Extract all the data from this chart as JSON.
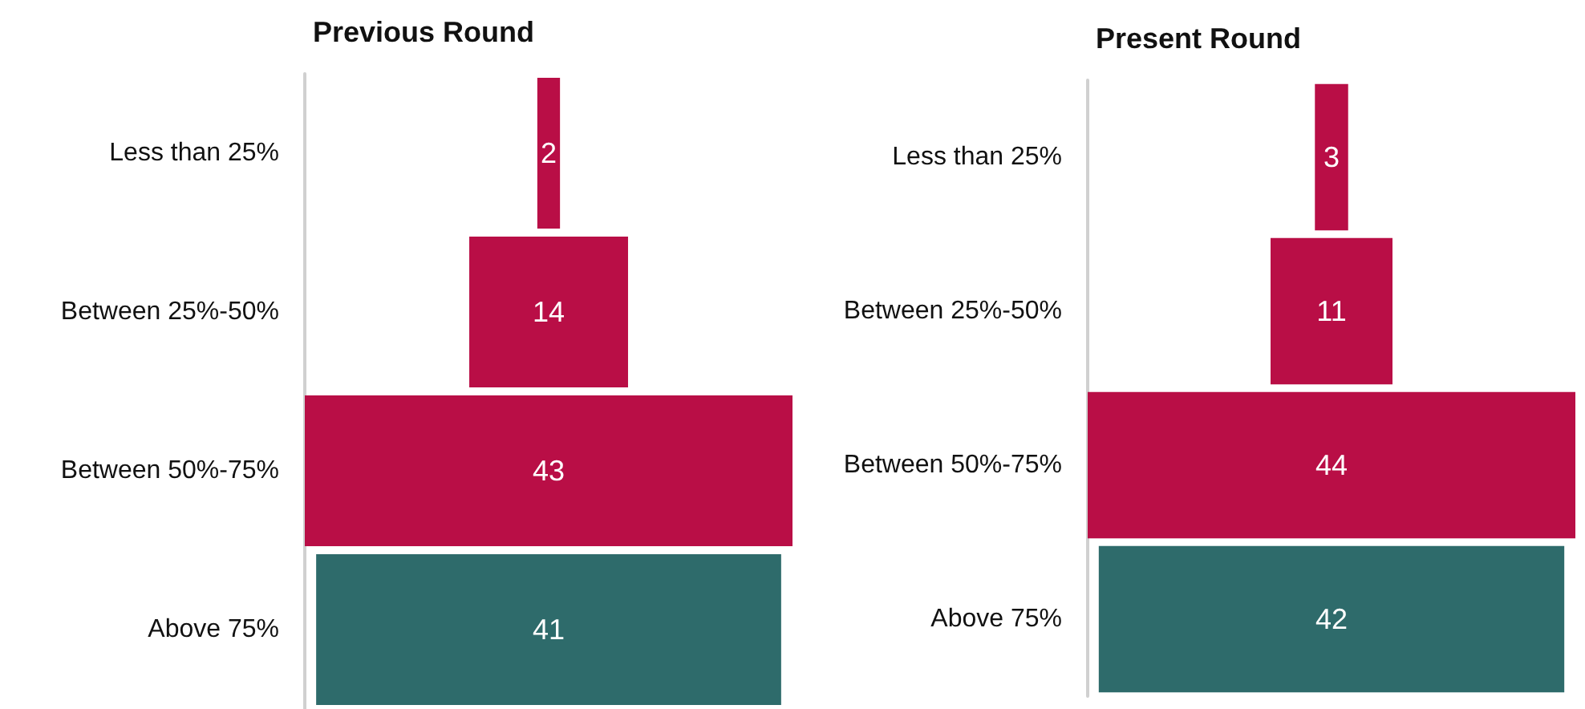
{
  "chart_data": [
    {
      "type": "other",
      "title": "Previous Round",
      "categories": [
        "Less than 25%",
        "Between 25%-50%",
        "Between 50%-75%",
        "Above 75%"
      ],
      "values": [
        2,
        14,
        43,
        41
      ],
      "colors": [
        "#b90e46",
        "#b90e46",
        "#b90e46",
        "#2e6b6b"
      ],
      "data_labels": true
    },
    {
      "type": "other",
      "title": "Present Round",
      "categories": [
        "Less than 25%",
        "Between 25%-50%",
        "Between 50%-75%",
        "Above 75%"
      ],
      "values": [
        3,
        11,
        44,
        42
      ],
      "colors": [
        "#b90e46",
        "#b90e46",
        "#b90e46",
        "#2e6b6b"
      ],
      "data_labels": true
    }
  ]
}
